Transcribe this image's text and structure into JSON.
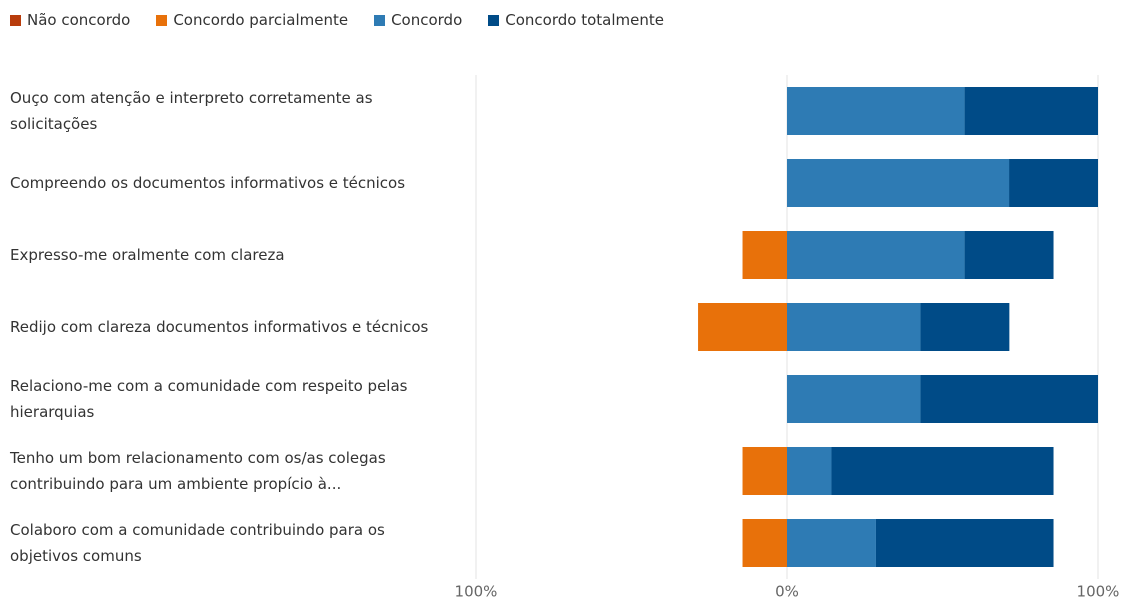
{
  "chart_data": {
    "type": "diverging_bar",
    "categories": [
      "Ouço com atenção e interpreto corretamente as solicitações",
      "Compreendo os documentos informativos e técnicos",
      "Expresso-me oralmente com clareza",
      "Redijo com clareza documentos informativos e técnicos",
      "Relaciono-me com a comunidade com respeito pelas hierarquias",
      "Tenho um bom relacionamento com os/as colegas contribuindo para um ambiente propício à...",
      "Colaboro com a comunidade contribuindo para os objetivos comuns"
    ],
    "series": [
      {
        "name": "Não concordo",
        "color": "#b83c0c",
        "side": "left",
        "values": [
          0,
          0,
          0,
          0,
          0,
          0,
          0
        ]
      },
      {
        "name": "Concordo parcialmente",
        "color": "#e8710a",
        "side": "left",
        "values": [
          0,
          0,
          14.3,
          28.6,
          0,
          14.3,
          14.3
        ]
      },
      {
        "name": "Concordo",
        "color": "#2e7bb4",
        "side": "right",
        "values": [
          57.1,
          71.4,
          57.1,
          42.9,
          42.9,
          14.3,
          28.6
        ]
      },
      {
        "name": "Concordo totalmente",
        "color": "#004b87",
        "side": "right",
        "values": [
          42.9,
          28.6,
          28.6,
          28.6,
          57.1,
          71.4,
          57.1
        ]
      }
    ],
    "xlim": [
      -100,
      100
    ],
    "xticks": [
      {
        "value": -100,
        "label": "100%"
      },
      {
        "value": 0,
        "label": "0%"
      },
      {
        "value": 100,
        "label": "100%"
      }
    ],
    "grid": true,
    "legend": "top-left"
  }
}
